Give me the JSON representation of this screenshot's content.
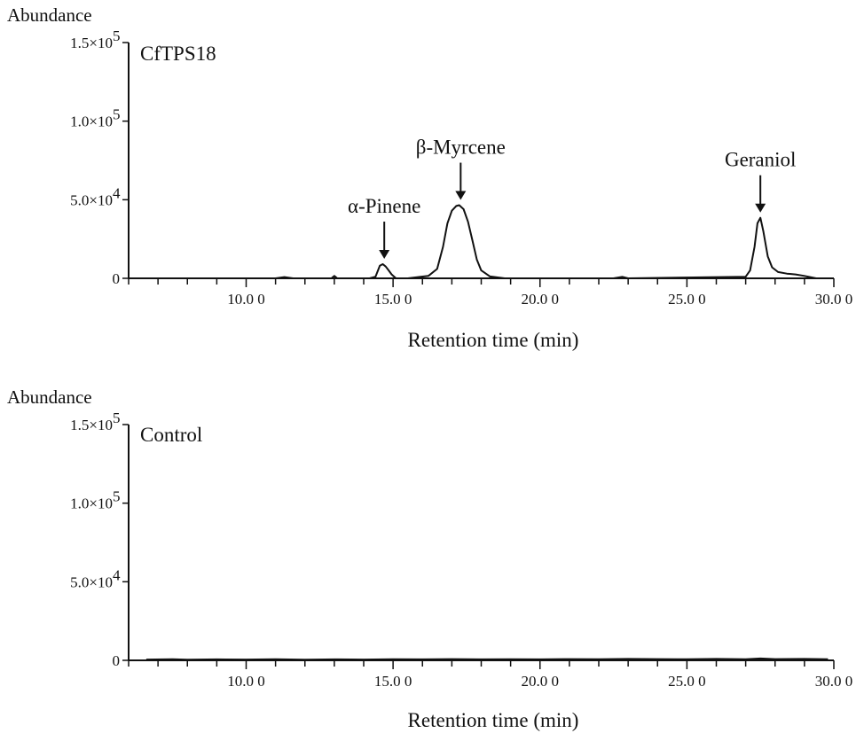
{
  "chart_data": [
    {
      "type": "line",
      "panel_label": "CfTPS18",
      "ylabel": "Abundance",
      "xlabel": "Retention time (min)",
      "xlim": [
        6.0,
        30.0
      ],
      "ylim": [
        0,
        150000
      ],
      "x_ticks": [
        "10.0 0",
        "15.0 0",
        "20.0 0",
        "25.0 0",
        "30.0 0"
      ],
      "x_tick_values": [
        10,
        15,
        20,
        25,
        30
      ],
      "y_ticks": [
        "0",
        "5.0×10",
        "1.0×10",
        "1.5×10"
      ],
      "y_tick_exponents": [
        "",
        "4",
        "5",
        "5"
      ],
      "y_tick_values": [
        0,
        50000,
        100000,
        150000
      ],
      "series": [
        {
          "x": [
            6.0,
            11.0,
            11.3,
            11.6,
            12.9,
            13.0,
            13.1,
            14.2,
            14.4,
            14.55,
            14.65,
            14.75,
            14.85,
            14.95,
            15.1,
            15.5,
            16.2,
            16.5,
            16.7,
            16.85,
            17.0,
            17.15,
            17.25,
            17.4,
            17.55,
            17.7,
            17.85,
            18.0,
            18.3,
            18.8,
            22.5,
            22.8,
            23.0,
            27.0,
            27.15,
            27.3,
            27.4,
            27.5,
            27.6,
            27.75,
            27.9,
            28.1,
            28.4,
            28.7,
            29.0,
            29.4
          ],
          "y": [
            0,
            0,
            800,
            0,
            0,
            1500,
            0,
            0,
            1000,
            8000,
            9000,
            7500,
            5000,
            2500,
            0,
            0,
            1500,
            6000,
            20000,
            35000,
            43000,
            46000,
            46500,
            44000,
            36000,
            24000,
            12000,
            5000,
            1200,
            0,
            0,
            900,
            0,
            1000,
            5000,
            20000,
            35000,
            38500,
            30000,
            14000,
            7000,
            4000,
            3000,
            2500,
            1500,
            0
          ]
        }
      ],
      "annotations": [
        {
          "text": "α-Pinene",
          "x": 14.7,
          "y": 9000
        },
        {
          "text": "β-Myrcene",
          "x": 17.3,
          "y": 46500
        },
        {
          "text": "Geraniol",
          "x": 27.5,
          "y": 38500
        }
      ]
    },
    {
      "type": "line",
      "panel_label": "Control",
      "ylabel": "Abundance",
      "xlabel": "Retention time (min)",
      "xlim": [
        6.0,
        30.0
      ],
      "ylim": [
        0,
        150000
      ],
      "x_ticks": [
        "10.0 0",
        "15.0 0",
        "20.0 0",
        "25.0 0",
        "30.0 0"
      ],
      "x_tick_values": [
        10,
        15,
        20,
        25,
        30
      ],
      "y_ticks": [
        "0",
        "5.0×10",
        "1.0×10",
        "1.5×10"
      ],
      "y_tick_exponents": [
        "",
        "4",
        "5",
        "5"
      ],
      "y_tick_values": [
        0,
        50000,
        100000,
        150000
      ],
      "series": [
        {
          "x": [
            6.6,
            7.5,
            8.0,
            9.0,
            10.0,
            11.0,
            12.0,
            13.0,
            14.0,
            15.0,
            16.0,
            17.0,
            18.0,
            19.0,
            20.0,
            21.0,
            22.0,
            23.0,
            24.0,
            25.0,
            26.0,
            27.0,
            27.5,
            28.0,
            29.0,
            29.8
          ],
          "y": [
            500,
            700,
            400,
            600,
            500,
            700,
            400,
            600,
            500,
            700,
            600,
            800,
            600,
            700,
            600,
            800,
            700,
            900,
            800,
            700,
            900,
            700,
            1200,
            800,
            900,
            700
          ]
        }
      ],
      "annotations": []
    }
  ]
}
